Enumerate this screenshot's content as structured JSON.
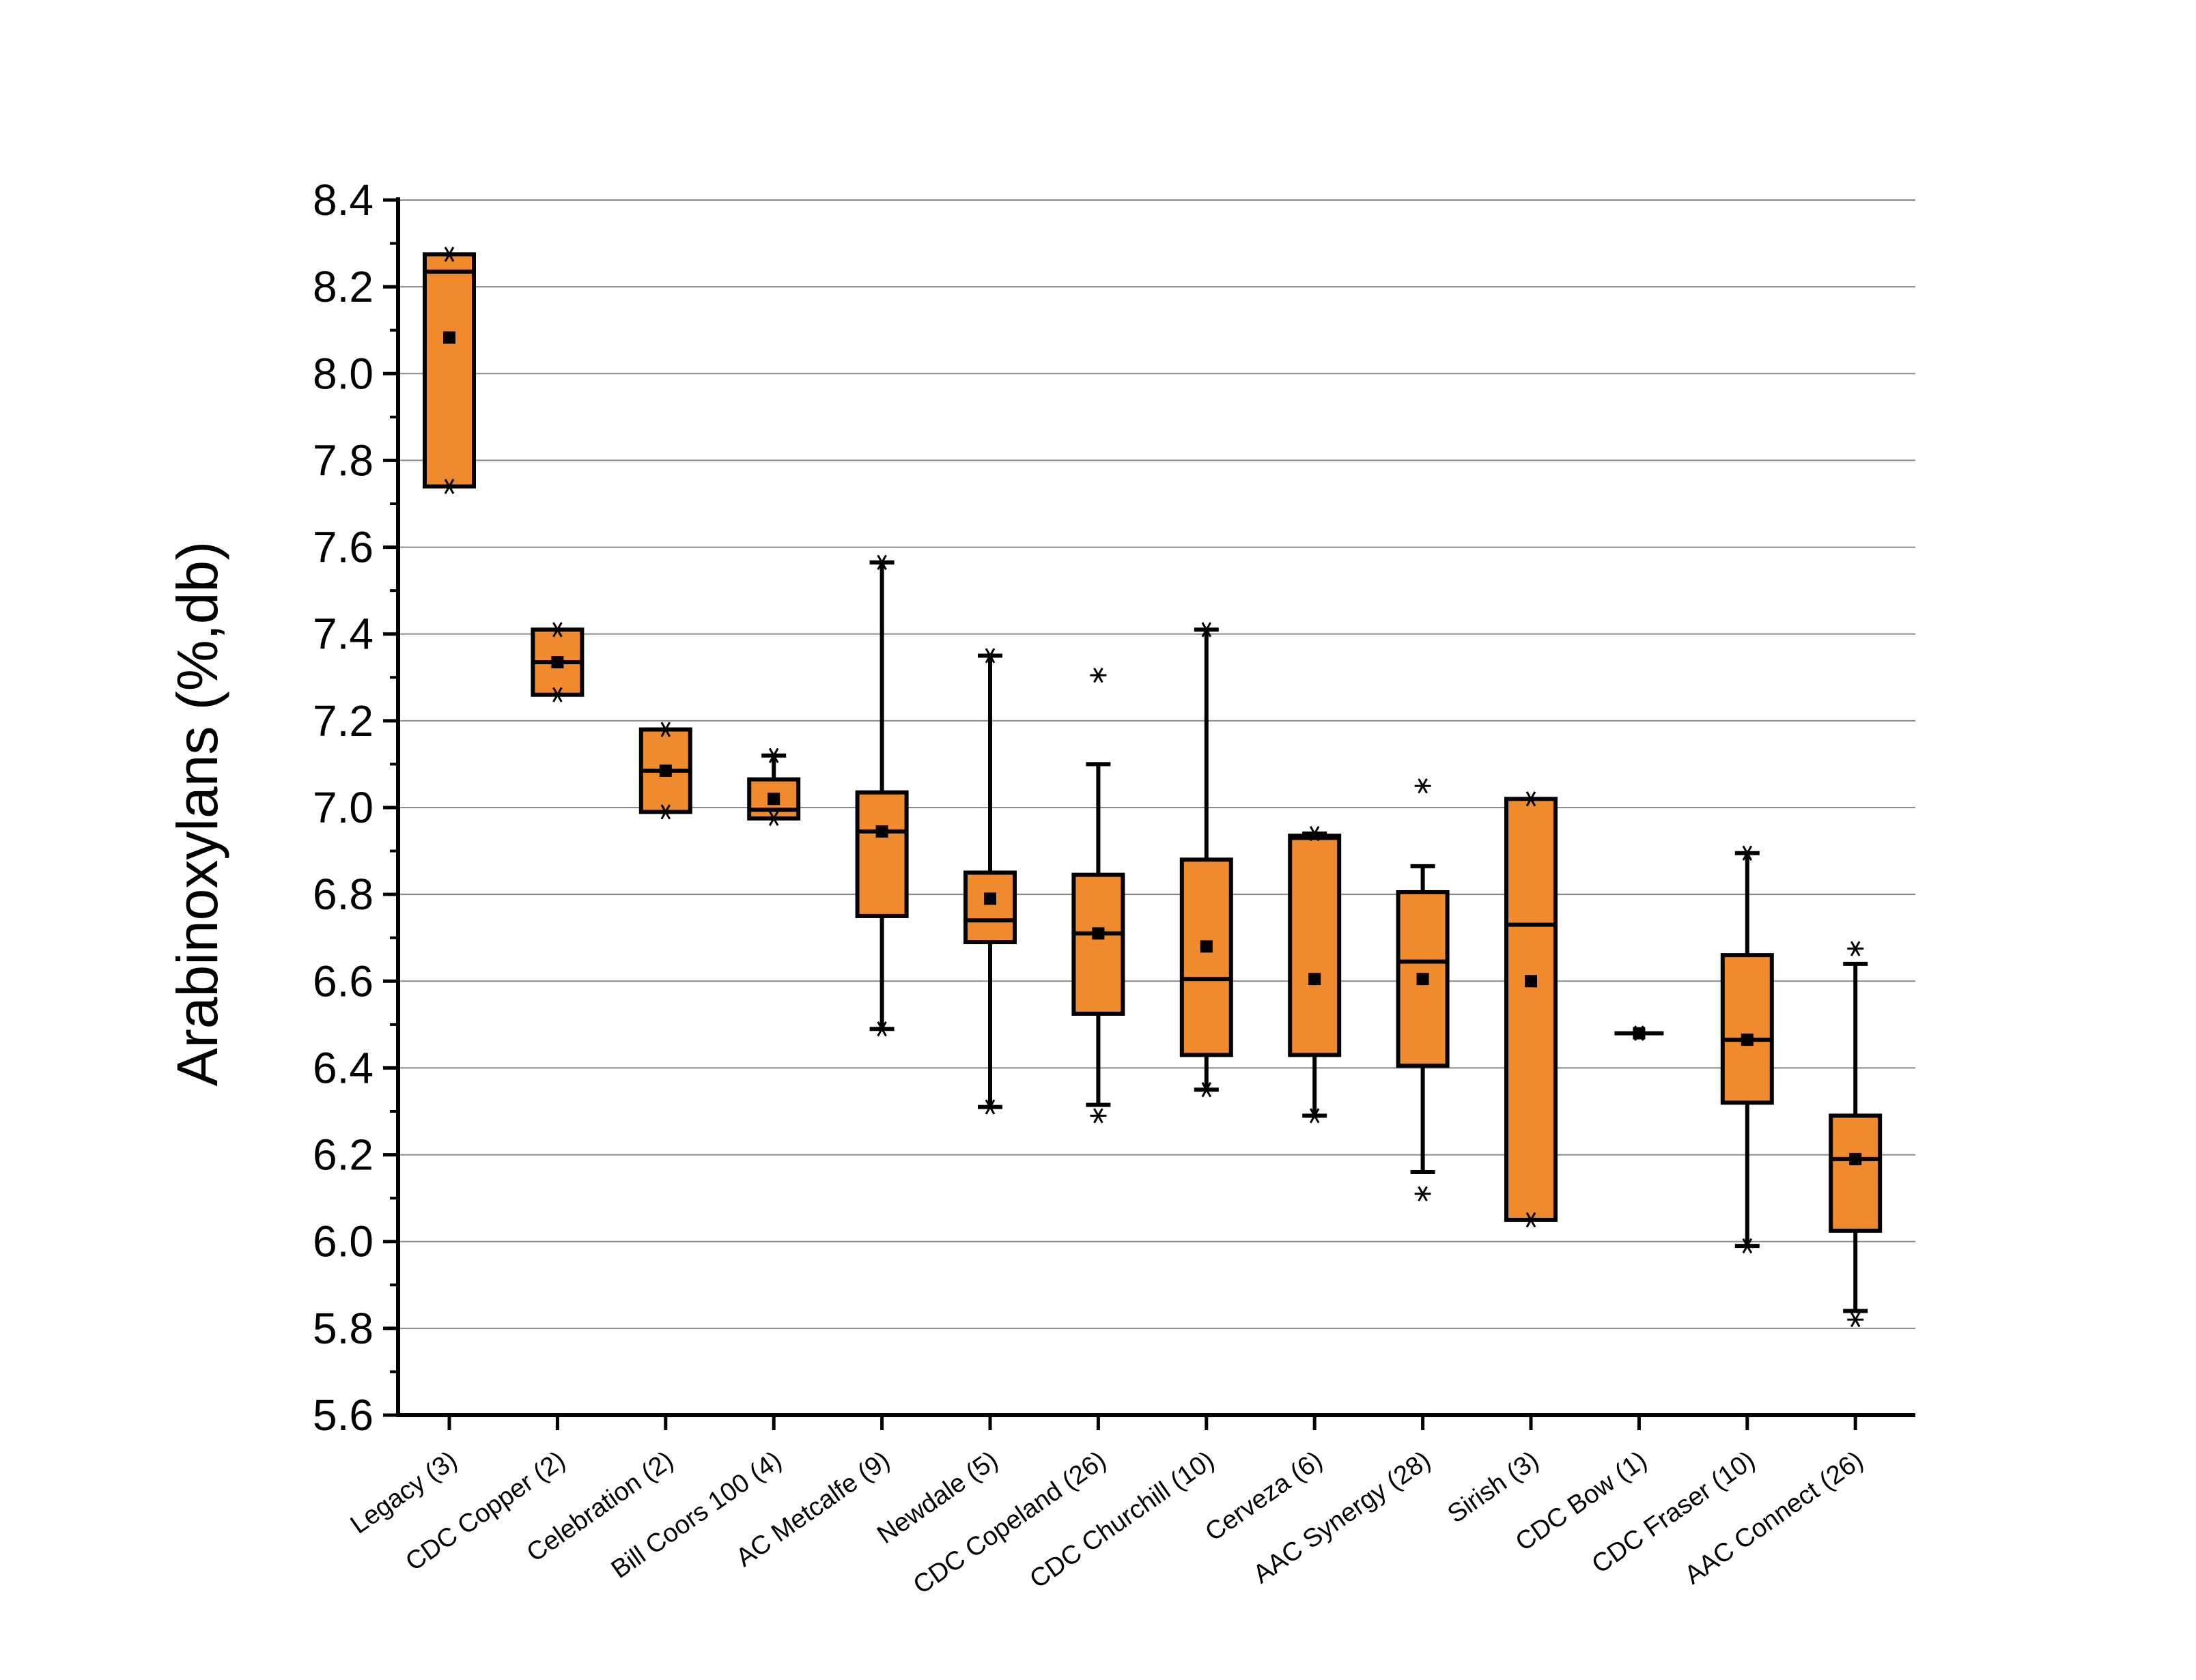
{
  "chart_data": {
    "type": "box",
    "title": "",
    "xlabel": "",
    "ylabel": "Arabinoxylans (%,db)",
    "ylim": [
      5.6,
      8.4
    ],
    "yticks": [
      5.6,
      5.8,
      6.0,
      6.2,
      6.4,
      6.6,
      6.8,
      7.0,
      7.2,
      7.4,
      7.6,
      7.8,
      8.0,
      8.2,
      8.4
    ],
    "grid": "horizontal",
    "box_color": "#F08A2E",
    "categories": [
      "Legacy (3)",
      "CDC Copper (2)",
      "Celebration (2)",
      "Bill Coors 100 (4)",
      "AC Metcalfe (9)",
      "Newdale (5)",
      "CDC Copeland (26)",
      "CDC Churchill (10)",
      "Cerveza (6)",
      "AAC Synergy (28)",
      "Sirish (3)",
      "CDC Bow (1)",
      "CDC Fraser (10)",
      "AAC Connect (26)"
    ],
    "boxes": [
      {
        "name": "Legacy (3)",
        "q1": 7.74,
        "median": 8.235,
        "q3": 8.275,
        "whisker_low": 7.74,
        "whisker_high": 8.275,
        "mean": 8.083,
        "min": 7.74,
        "max": 8.275,
        "outliers": []
      },
      {
        "name": "CDC Copper (2)",
        "q1": 7.26,
        "median": 7.335,
        "q3": 7.41,
        "whisker_low": 7.26,
        "whisker_high": 7.41,
        "mean": 7.335,
        "min": 7.26,
        "max": 7.41,
        "outliers": []
      },
      {
        "name": "Celebration (2)",
        "q1": 6.99,
        "median": 7.085,
        "q3": 7.18,
        "whisker_low": 6.99,
        "whisker_high": 7.18,
        "mean": 7.085,
        "min": 6.99,
        "max": 7.18,
        "outliers": []
      },
      {
        "name": "Bill Coors 100 (4)",
        "q1": 6.975,
        "median": 6.995,
        "q3": 7.065,
        "whisker_low": 6.975,
        "whisker_high": 7.12,
        "mean": 7.02,
        "min": 6.975,
        "max": 7.12,
        "outliers": []
      },
      {
        "name": "AC Metcalfe (9)",
        "q1": 6.75,
        "median": 6.945,
        "q3": 7.035,
        "whisker_low": 6.49,
        "whisker_high": 7.565,
        "mean": 6.945,
        "min": 6.49,
        "max": 7.565,
        "outliers": []
      },
      {
        "name": "Newdale (5)",
        "q1": 6.69,
        "median": 6.74,
        "q3": 6.85,
        "whisker_low": 6.31,
        "whisker_high": 7.35,
        "mean": 6.79,
        "min": 6.31,
        "max": 7.35,
        "outliers": []
      },
      {
        "name": "CDC Copeland (26)",
        "q1": 6.525,
        "median": 6.71,
        "q3": 6.845,
        "whisker_low": 6.315,
        "whisker_high": 7.1,
        "mean": 6.71,
        "min": 6.29,
        "max": 7.305,
        "outliers": []
      },
      {
        "name": "CDC Churchill (10)",
        "q1": 6.43,
        "median": 6.605,
        "q3": 6.88,
        "whisker_low": 6.35,
        "whisker_high": 7.41,
        "mean": 6.68,
        "min": 6.35,
        "max": 7.41,
        "outliers": []
      },
      {
        "name": "Cerveza (6)",
        "q1": 6.43,
        "median": 6.93,
        "q3": 6.935,
        "whisker_low": 6.29,
        "whisker_high": 6.94,
        "mean": 6.605,
        "min": 6.29,
        "max": 6.94,
        "outliers": []
      },
      {
        "name": "AAC Synergy (28)",
        "q1": 6.405,
        "median": 6.645,
        "q3": 6.805,
        "whisker_low": 6.16,
        "whisker_high": 6.865,
        "mean": 6.605,
        "min": 6.11,
        "max": 7.05,
        "outliers": []
      },
      {
        "name": "Sirish (3)",
        "q1": 6.05,
        "median": 6.73,
        "q3": 7.02,
        "whisker_low": 6.05,
        "whisker_high": 7.02,
        "mean": 6.6,
        "min": 6.05,
        "max": 7.02,
        "outliers": []
      },
      {
        "name": "CDC Bow (1)",
        "q1": 6.48,
        "median": 6.48,
        "q3": 6.48,
        "whisker_low": 6.48,
        "whisker_high": 6.48,
        "mean": 6.48,
        "min": 6.48,
        "max": 6.48,
        "outliers": []
      },
      {
        "name": "CDC Fraser (10)",
        "q1": 6.32,
        "median": 6.465,
        "q3": 6.66,
        "whisker_low": 5.99,
        "whisker_high": 6.895,
        "mean": 6.465,
        "min": 5.99,
        "max": 6.895,
        "outliers": []
      },
      {
        "name": "AAC Connect (26)",
        "q1": 6.025,
        "median": 6.19,
        "q3": 6.29,
        "whisker_low": 5.84,
        "whisker_high": 6.64,
        "mean": 6.19,
        "min": 5.82,
        "max": 6.675,
        "outliers": []
      }
    ]
  }
}
